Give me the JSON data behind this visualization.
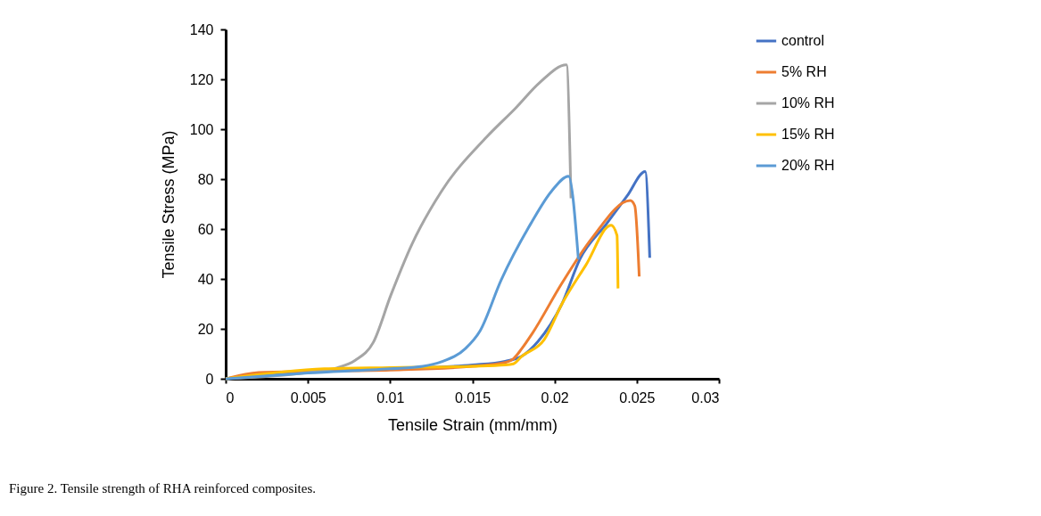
{
  "chart_data": {
    "type": "line",
    "xlabel": "Tensile Strain (mm/mm)",
    "ylabel": "Tensile Stress (MPa)",
    "xlim": [
      0,
      0.03
    ],
    "xticks": [
      0,
      0.005,
      0.01,
      0.015,
      0.02,
      0.025,
      0.03
    ],
    "ylim": [
      0,
      140
    ],
    "yticks": [
      0,
      20,
      40,
      60,
      80,
      100,
      120,
      140
    ],
    "grid": false,
    "legend": "right",
    "marker": "none",
    "line_style": "solid",
    "series": [
      {
        "name": "control",
        "color": "#4472c4",
        "x": [
          0,
          0.005,
          0.01,
          0.015,
          0.017,
          0.018,
          0.019,
          0.02045,
          0.02154,
          0.02316,
          0.02443,
          0.02551,
          0.02579
        ],
        "values": [
          0,
          2.5,
          4,
          5.5,
          7,
          9,
          15,
          30,
          47.9,
          62.1,
          73.4,
          83,
          48.5
        ]
      },
      {
        "name": "5% RH",
        "color": "#ed7d31",
        "x": [
          0,
          0.002,
          0.005,
          0.01,
          0.015,
          0.017,
          0.0175,
          0.018,
          0.01864,
          0.02045,
          0.02226,
          0.02461,
          0.02488,
          0.02515
        ],
        "values": [
          0,
          2.5,
          3,
          3.5,
          5,
          6.5,
          8,
          12,
          18.1,
          38.3,
          56.2,
          71.4,
          69.3,
          41
        ]
      },
      {
        "name": "10% RH",
        "color": "#a5a5a5",
        "x": [
          0,
          0.005,
          0.0068,
          0.00788,
          0.00897,
          0.01005,
          0.01132,
          0.01313,
          0.01584,
          0.01765,
          0.0191,
          0.02072,
          0.021
        ],
        "values": [
          0,
          2.5,
          4.4,
          7.4,
          14.5,
          33.6,
          53.8,
          75.2,
          96.7,
          108.6,
          118.7,
          125.8,
          72.3
        ]
      },
      {
        "name": "15% RH",
        "color": "#ffc000",
        "x": [
          0,
          0.006,
          0.01,
          0.015,
          0.017,
          0.0175,
          0.018,
          0.01937,
          0.02045,
          0.0219,
          0.02344,
          0.0238,
          0.02386
        ],
        "values": [
          0,
          4,
          4.5,
          5,
          5.5,
          6,
          9,
          15.7,
          30,
          45.5,
          61.5,
          57.4,
          36.2
        ]
      },
      {
        "name": "20% RH",
        "color": "#5b9bd5",
        "x": [
          0,
          0.005,
          0.01,
          0.012,
          0.01313,
          0.01458,
          0.01548,
          0.01675,
          0.01855,
          0.01982,
          0.02085,
          0.02145
        ],
        "values": [
          0,
          2.3,
          4,
          5,
          6.8,
          12.1,
          19.3,
          39.5,
          62.1,
          75.2,
          81.2,
          47.9
        ]
      }
    ],
    "annotations": [
      "Figure 2. Tensile strength of RHA reinforced composites."
    ]
  }
}
